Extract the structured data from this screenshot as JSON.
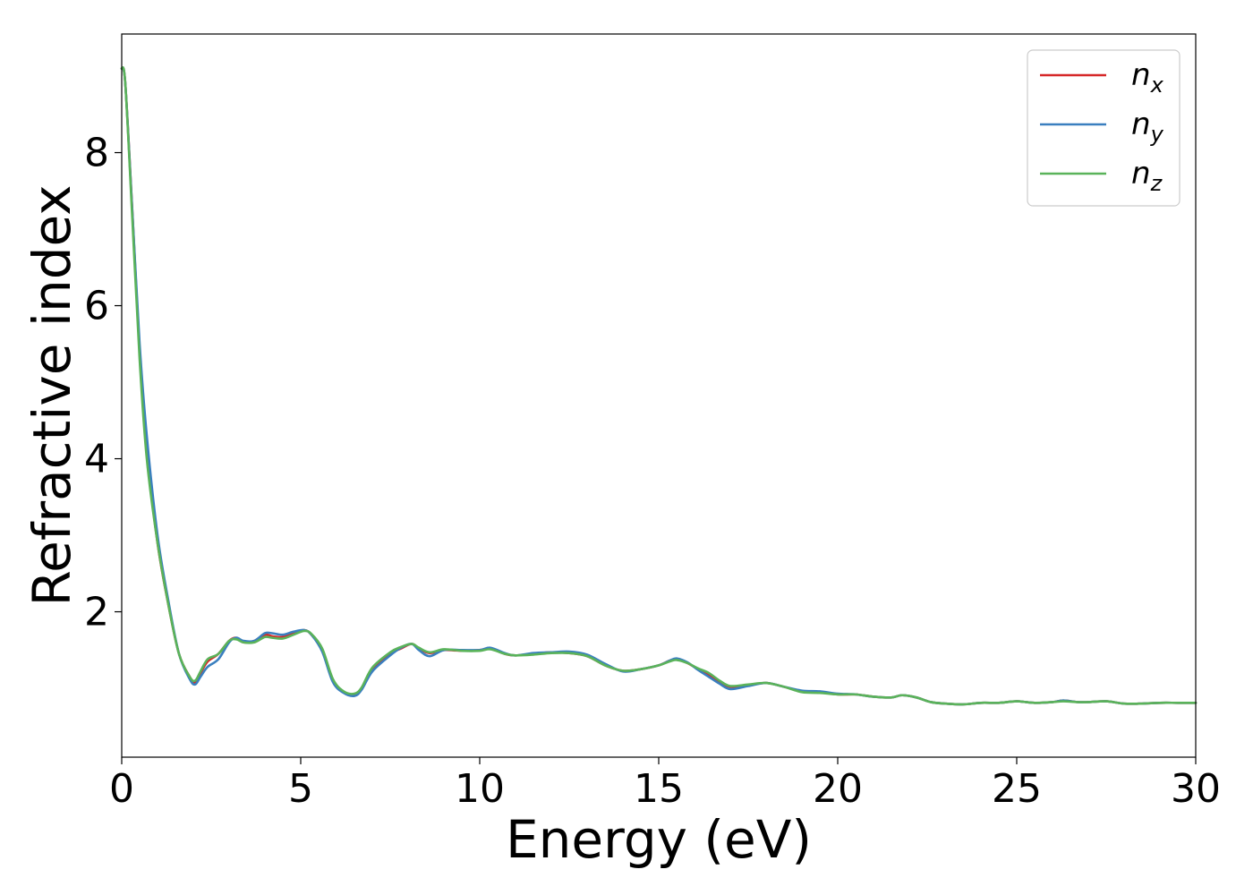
{
  "chart_data": {
    "type": "line",
    "title": "",
    "xlabel": "Energy (eV)",
    "ylabel": "Refractive index",
    "xlim": [
      0,
      30
    ],
    "ylim": [
      0.1,
      9.55
    ],
    "xticks": [
      0,
      5,
      10,
      15,
      20,
      25,
      30
    ],
    "yticks": [
      2,
      4,
      6,
      8
    ],
    "grid": false,
    "legend_position": "top-right",
    "series": [
      {
        "name": "n",
        "subscript": "x",
        "color": "#d62728",
        "x": [
          0,
          0.1,
          0.3,
          0.5,
          0.7,
          1.0,
          1.3,
          1.6,
          1.9,
          2.05,
          2.2,
          2.4,
          2.7,
          3.0,
          3.2,
          3.4,
          3.7,
          4.0,
          4.2,
          4.5,
          4.8,
          5.1,
          5.3,
          5.6,
          5.9,
          6.2,
          6.5,
          6.7,
          7.0,
          7.5,
          7.8,
          8.1,
          8.3,
          8.6,
          9.0,
          9.5,
          10.0,
          10.3,
          10.7,
          11.0,
          11.5,
          12.0,
          12.5,
          13.0,
          13.5,
          14.0,
          14.5,
          15.0,
          15.3,
          15.5,
          15.8,
          16.1,
          16.4,
          16.7,
          17.0,
          17.5,
          18.0,
          18.5,
          19.0,
          19.5,
          20.0,
          20.5,
          21.0,
          21.5,
          21.8,
          22.2,
          22.6,
          23.0,
          23.5,
          24.0,
          24.5,
          25.0,
          25.5,
          26.0,
          26.3,
          26.7,
          27.0,
          27.5,
          28.0,
          28.5,
          29.0,
          29.5,
          30.0
        ],
        "values": [
          9.1,
          8.9,
          7.2,
          5.4,
          4.1,
          2.9,
          2.1,
          1.45,
          1.15,
          1.08,
          1.2,
          1.35,
          1.45,
          1.62,
          1.66,
          1.6,
          1.62,
          1.7,
          1.68,
          1.67,
          1.72,
          1.76,
          1.7,
          1.5,
          1.1,
          0.95,
          0.92,
          1.0,
          1.25,
          1.45,
          1.52,
          1.58,
          1.52,
          1.46,
          1.5,
          1.49,
          1.5,
          1.52,
          1.45,
          1.43,
          1.45,
          1.47,
          1.46,
          1.42,
          1.3,
          1.23,
          1.25,
          1.3,
          1.36,
          1.38,
          1.33,
          1.25,
          1.18,
          1.08,
          1.02,
          1.04,
          1.07,
          1.02,
          0.96,
          0.95,
          0.92,
          0.92,
          0.89,
          0.88,
          0.91,
          0.88,
          0.82,
          0.8,
          0.79,
          0.81,
          0.81,
          0.83,
          0.81,
          0.82,
          0.84,
          0.82,
          0.82,
          0.83,
          0.8,
          0.8,
          0.81,
          0.81,
          0.81
        ]
      },
      {
        "name": "n",
        "subscript": "y",
        "color": "#3a7fbf",
        "x": [
          0,
          0.1,
          0.3,
          0.5,
          0.7,
          1.0,
          1.3,
          1.6,
          1.9,
          2.05,
          2.2,
          2.4,
          2.7,
          3.0,
          3.2,
          3.4,
          3.7,
          4.0,
          4.2,
          4.5,
          4.8,
          5.1,
          5.3,
          5.6,
          5.9,
          6.2,
          6.5,
          6.7,
          7.0,
          7.5,
          7.8,
          8.1,
          8.3,
          8.6,
          9.0,
          9.5,
          10.0,
          10.3,
          10.7,
          11.0,
          11.5,
          12.0,
          12.5,
          13.0,
          13.5,
          14.0,
          14.5,
          15.0,
          15.3,
          15.5,
          15.8,
          16.1,
          16.4,
          16.7,
          17.0,
          17.5,
          18.0,
          18.5,
          19.0,
          19.5,
          20.0,
          20.5,
          21.0,
          21.5,
          21.8,
          22.2,
          22.6,
          23.0,
          23.5,
          24.0,
          24.5,
          25.0,
          25.5,
          26.0,
          26.3,
          26.7,
          27.0,
          27.5,
          28.0,
          28.5,
          29.0,
          29.5,
          30.0
        ],
        "values": [
          9.1,
          8.9,
          7.2,
          5.5,
          4.3,
          3.0,
          2.15,
          1.45,
          1.12,
          1.05,
          1.15,
          1.28,
          1.38,
          1.6,
          1.66,
          1.62,
          1.62,
          1.72,
          1.72,
          1.7,
          1.74,
          1.76,
          1.7,
          1.48,
          1.08,
          0.94,
          0.9,
          0.98,
          1.22,
          1.43,
          1.53,
          1.58,
          1.5,
          1.42,
          1.5,
          1.5,
          1.5,
          1.53,
          1.46,
          1.43,
          1.46,
          1.47,
          1.48,
          1.44,
          1.32,
          1.22,
          1.25,
          1.3,
          1.36,
          1.39,
          1.34,
          1.24,
          1.15,
          1.06,
          0.99,
          1.03,
          1.07,
          1.02,
          0.97,
          0.96,
          0.93,
          0.92,
          0.89,
          0.88,
          0.91,
          0.88,
          0.82,
          0.8,
          0.79,
          0.81,
          0.81,
          0.83,
          0.81,
          0.82,
          0.84,
          0.82,
          0.82,
          0.83,
          0.8,
          0.8,
          0.81,
          0.81,
          0.81
        ]
      },
      {
        "name": "n",
        "subscript": "z",
        "color": "#5ab35a",
        "x": [
          0,
          0.1,
          0.3,
          0.5,
          0.7,
          1.0,
          1.3,
          1.6,
          1.9,
          2.05,
          2.2,
          2.4,
          2.7,
          3.0,
          3.2,
          3.4,
          3.7,
          4.0,
          4.2,
          4.5,
          4.8,
          5.1,
          5.3,
          5.6,
          5.9,
          6.2,
          6.5,
          6.7,
          7.0,
          7.5,
          7.8,
          8.1,
          8.3,
          8.6,
          9.0,
          9.5,
          10.0,
          10.3,
          10.7,
          11.0,
          11.5,
          12.0,
          12.5,
          13.0,
          13.5,
          14.0,
          14.5,
          15.0,
          15.3,
          15.5,
          15.8,
          16.1,
          16.4,
          16.7,
          17.0,
          17.5,
          18.0,
          18.5,
          19.0,
          19.5,
          20.0,
          20.5,
          21.0,
          21.5,
          21.8,
          22.2,
          22.6,
          23.0,
          23.5,
          24.0,
          24.5,
          25.0,
          25.5,
          26.0,
          26.3,
          26.7,
          27.0,
          27.5,
          28.0,
          28.5,
          29.0,
          29.5,
          30.0
        ],
        "values": [
          9.1,
          8.9,
          7.1,
          5.3,
          4.0,
          2.9,
          2.1,
          1.45,
          1.15,
          1.1,
          1.22,
          1.38,
          1.45,
          1.62,
          1.64,
          1.6,
          1.6,
          1.67,
          1.66,
          1.65,
          1.7,
          1.75,
          1.71,
          1.52,
          1.12,
          0.96,
          0.93,
          1.01,
          1.27,
          1.47,
          1.54,
          1.58,
          1.53,
          1.47,
          1.51,
          1.49,
          1.49,
          1.51,
          1.45,
          1.43,
          1.44,
          1.46,
          1.46,
          1.42,
          1.3,
          1.23,
          1.25,
          1.3,
          1.35,
          1.37,
          1.33,
          1.26,
          1.2,
          1.1,
          1.03,
          1.05,
          1.07,
          1.02,
          0.95,
          0.94,
          0.92,
          0.92,
          0.89,
          0.88,
          0.91,
          0.88,
          0.82,
          0.8,
          0.79,
          0.81,
          0.81,
          0.83,
          0.81,
          0.82,
          0.83,
          0.82,
          0.82,
          0.83,
          0.8,
          0.8,
          0.81,
          0.81,
          0.81
        ]
      }
    ]
  }
}
